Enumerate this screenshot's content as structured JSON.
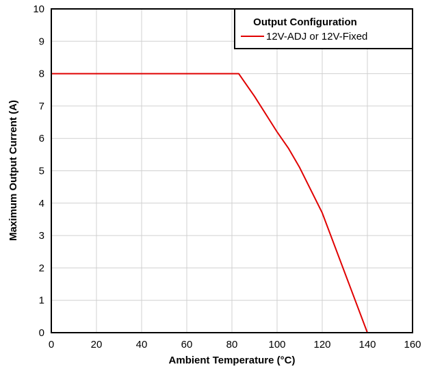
{
  "chart_data": {
    "type": "line",
    "title": "",
    "xlabel": "Ambient Temperature (°C)",
    "ylabel": "Maximum Output Current (A)",
    "xlim": [
      0,
      160
    ],
    "ylim": [
      0,
      10
    ],
    "xticks": [
      0,
      20,
      40,
      60,
      80,
      100,
      120,
      140,
      160
    ],
    "yticks": [
      0,
      1,
      2,
      3,
      4,
      5,
      6,
      7,
      8,
      9,
      10
    ],
    "grid": true,
    "legend": {
      "title": "Output Configuration",
      "placement": "top-right"
    },
    "series": [
      {
        "name": "12V-ADJ or 12V-Fixed",
        "color": "#e00000",
        "x": [
          0,
          83,
          90,
          100,
          105,
          110,
          120,
          140
        ],
        "y": [
          8,
          8,
          7.3,
          6.2,
          5.7,
          5.1,
          3.7,
          0
        ]
      }
    ]
  }
}
